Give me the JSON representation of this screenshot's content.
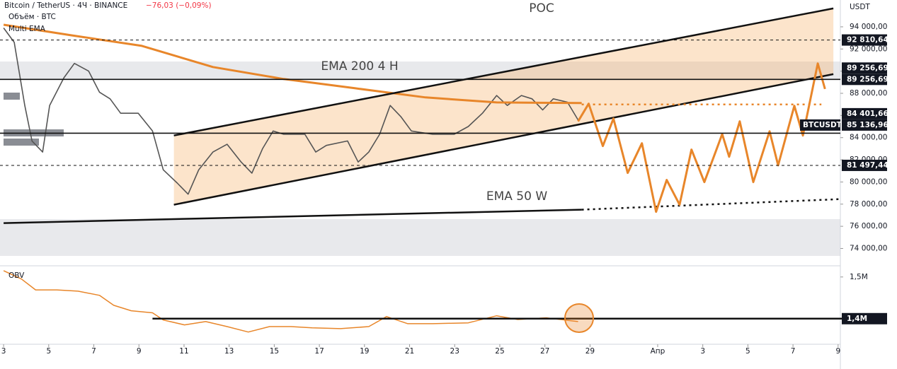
{
  "header": {
    "symbol": "Bitcoin / TetherUS · 4Ч · BINANCE",
    "change": "−76,03 (−0,09%)",
    "volume": "Объём · BTC",
    "indicator": "Multi EMA",
    "currency": "USDT"
  },
  "annotations": {
    "poc": "POC",
    "ema200": "EMA 200 4 H",
    "ema50": "EMA 50 W"
  },
  "chart_data": [
    {
      "type": "line",
      "xlim": [
        2.84,
        40.1
      ],
      "ylim": [
        72500,
        96420
      ],
      "xticks": [
        3,
        5,
        7,
        9,
        11,
        13,
        15,
        17,
        19,
        21,
        23,
        25,
        27,
        29,
        {
          "value": 32,
          "label": "Апр"
        },
        {
          "value": 34,
          "label": "3"
        },
        {
          "value": 36,
          "label": "5"
        },
        {
          "value": 38,
          "label": "7"
        },
        {
          "value": 40,
          "label": "9"
        }
      ],
      "yticks": [
        {
          "value": 94000,
          "label": "94 000,00"
        },
        {
          "value": 92000,
          "label": "92 000,00"
        },
        {
          "value": 90000,
          "label": "90 000,00"
        },
        {
          "value": 88000,
          "label": "88 000,00"
        },
        {
          "value": 86000,
          "label": "86 000,00"
        },
        {
          "value": 84000,
          "label": "84 000,00"
        },
        {
          "value": 82000,
          "label": "82 000,00"
        },
        {
          "value": 80000,
          "label": "80 000,00"
        },
        {
          "value": 78000,
          "label": "78 000,00"
        },
        {
          "value": 76000,
          "label": "76 000,00"
        },
        {
          "value": 74000,
          "label": "74 000,00"
        }
      ],
      "series": [
        {
          "name": "BTCUSDT",
          "color": "#555555",
          "style": "solid",
          "width": 1.6,
          "x": [
            3.0,
            3.47,
            3.94,
            4.26,
            4.73,
            5.04,
            5.67,
            6.14,
            6.77,
            7.25,
            7.72,
            8.19,
            8.97,
            9.6,
            10.08,
            10.7,
            11.18,
            11.65,
            12.28,
            12.91,
            13.53,
            14.01,
            14.48,
            14.95,
            15.42,
            16.36,
            16.84,
            17.31,
            18.25,
            18.72,
            19.19,
            19.67,
            20.14,
            20.61,
            21.08,
            22.03,
            22.97,
            23.6,
            24.23,
            24.86,
            25.33,
            25.96,
            26.43,
            26.9,
            27.37,
            28.0,
            28.47
          ],
          "values": [
            93900,
            92600,
            86900,
            83700,
            82700,
            86900,
            89400,
            90700,
            90000,
            88100,
            87500,
            86200,
            86200,
            84600,
            81100,
            79900,
            78900,
            81100,
            82700,
            83400,
            81800,
            80800,
            83000,
            84600,
            84300,
            84300,
            82700,
            83300,
            83700,
            81800,
            82700,
            84300,
            86900,
            85900,
            84600,
            84300,
            84300,
            85000,
            86200,
            87800,
            86900,
            87800,
            87500,
            86500,
            87500,
            87200,
            85600
          ]
        },
        {
          "color": "#e8862a",
          "style": "solid",
          "width": 3,
          "x": [
            3.0,
            5.99,
            9.13,
            12.28,
            15.42,
            18.57,
            21.71,
            24.86,
            28.63
          ],
          "values": [
            94190,
            93240,
            92280,
            90370,
            89290,
            88460,
            87630,
            87180,
            87120
          ]
        },
        {
          "color": "#111111",
          "style": "solid",
          "width": 2.5,
          "x": [
            3.0,
            28.63
          ],
          "values": [
            76290,
            77500
          ]
        },
        {
          "color": "#111111",
          "style": "dotted",
          "width": 2.5,
          "x": [
            28.63,
            40.17
          ],
          "values": [
            77500,
            78460
          ]
        },
        {
          "color": "#111111",
          "style": "solid",
          "width": 2.5,
          "x": [
            10.55,
            39.79
          ],
          "values": [
            84190,
            95660
          ]
        },
        {
          "color": "#111111",
          "style": "solid",
          "width": 2.5,
          "x": [
            10.55,
            39.79
          ],
          "values": [
            77950,
            89730
          ]
        },
        {
          "color": "#e8862a",
          "style": "dotted",
          "width": 2.5,
          "x": [
            28.63,
            39.26
          ],
          "values": [
            87000,
            87000
          ]
        },
        {
          "color": "#e8862a",
          "style": "solid",
          "width": 3,
          "x": [
            28.47,
            28.94,
            29.57,
            30.04,
            30.67,
            31.3,
            31.93,
            32.4,
            32.97,
            33.5,
            34.07,
            34.86,
            35.17,
            35.64,
            36.24,
            36.96,
            37.34,
            38.06,
            38.44,
            39.1,
            39.42
          ],
          "values": [
            85470,
            87060,
            83240,
            85720,
            80820,
            83490,
            77310,
            80180,
            77950,
            82920,
            79990,
            84320,
            82280,
            85470,
            79990,
            84570,
            81500,
            86870,
            84190,
            90690,
            88390
          ]
        }
      ],
      "hlines": [
        {
          "value": 92810.64,
          "label": "92 810,64",
          "style": "dashed"
        },
        {
          "value": 89256.69,
          "label": "89 256,69",
          "style": "solid"
        },
        {
          "value": 89256.69,
          "label": "89 256,69",
          "style": "none"
        },
        {
          "value": 85136.96,
          "label": "85 136,96",
          "style": "none",
          "tag": "BTCUSDT"
        },
        {
          "value": 84401.66,
          "label": "84 401,66",
          "style": "solid"
        },
        {
          "value": 81497.44,
          "label": "81 497,44",
          "style": "dashed"
        }
      ]
    },
    {
      "type": "line",
      "title": "OBV",
      "xlim": [
        2.84,
        40.1
      ],
      "ylim": [
        1.342,
        1.52
      ],
      "yticks": [
        {
          "value": 1.5,
          "label": "1,5M"
        }
      ],
      "series": [
        {
          "color": "#e8862a",
          "style": "solid",
          "width": 1.5,
          "x": [
            3.0,
            3.79,
            4.42,
            5.36,
            6.3,
            7.25,
            7.88,
            8.66,
            9.6,
            10.08,
            11.02,
            11.96,
            12.91,
            13.85,
            14.79,
            15.74,
            16.68,
            17.94,
            19.19,
            19.98,
            20.92,
            22.03,
            23.6,
            24.86,
            25.8,
            27.06,
            28.47
          ],
          "values": [
            1.515,
            1.495,
            1.469,
            1.469,
            1.466,
            1.456,
            1.432,
            1.419,
            1.414,
            1.397,
            1.385,
            1.393,
            1.381,
            1.368,
            1.381,
            1.381,
            1.378,
            1.376,
            1.381,
            1.405,
            1.388,
            1.388,
            1.39,
            1.407,
            1.398,
            1.402,
            1.393
          ]
        },
        {
          "color": "#111111",
          "style": "solid",
          "width": 2.5,
          "x": [
            9.6,
            40.17
          ],
          "values": [
            1.4,
            1.4
          ]
        }
      ],
      "hlines": [
        {
          "value": 1.4,
          "label": "1,4M",
          "style": "none"
        }
      ]
    }
  ]
}
